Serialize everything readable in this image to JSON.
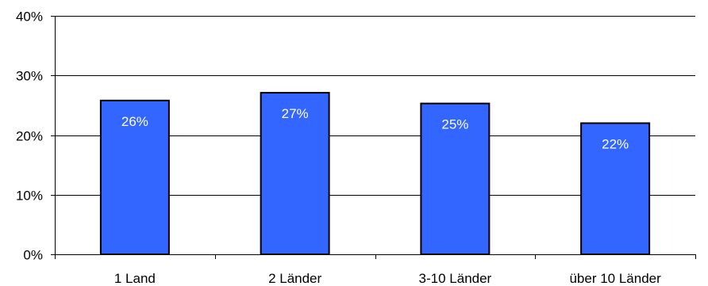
{
  "chart_data": {
    "type": "bar",
    "categories": [
      "1 Land",
      "2 Länder",
      "3-10 Länder",
      "über 10 Länder"
    ],
    "values": [
      25.8,
      27.1,
      25.3,
      22.0
    ],
    "data_labels": [
      "26%",
      "27%",
      "25%",
      "22%"
    ],
    "y_ticks": [
      0,
      10,
      20,
      30,
      40
    ],
    "y_tick_labels": [
      "0%",
      "10%",
      "20%",
      "30%",
      "40%"
    ],
    "ylim": [
      0,
      40
    ],
    "title": "",
    "xlabel": "",
    "ylabel": "",
    "grid": true,
    "legend": "none",
    "colors": {
      "bar_fill": "#3366ff",
      "bar_stroke": "#000000",
      "grid": "#000000",
      "axis": "#000000",
      "data_label": "#ffffff"
    }
  }
}
